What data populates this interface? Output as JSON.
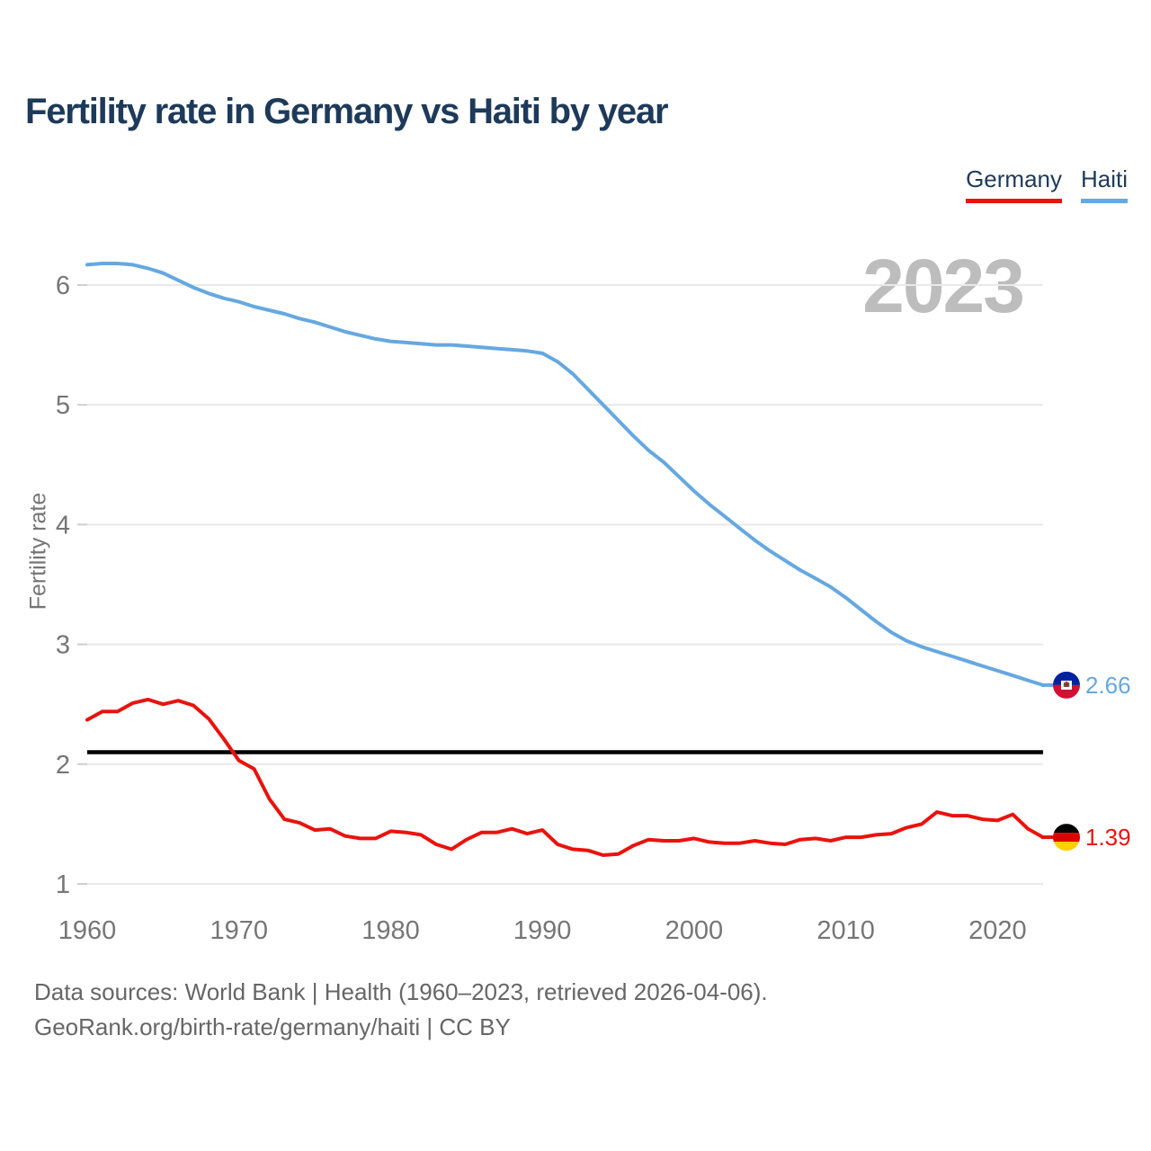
{
  "chart_data": {
    "type": "line",
    "title": "Fertility rate in Germany vs Haiti by year",
    "ylabel": "Fertility rate",
    "watermark": "2023",
    "xlim": [
      1960,
      2023
    ],
    "ylim": [
      1,
      6.5
    ],
    "x_ticks": [
      1960,
      1970,
      1980,
      1990,
      2000,
      2010,
      2020
    ],
    "y_ticks": [
      1,
      2,
      3,
      4,
      5,
      6
    ],
    "grid": "horizontal",
    "legend_position": "top-right",
    "reference_line": {
      "value": 2.1,
      "color": "#000000"
    },
    "x": [
      1960,
      1961,
      1962,
      1963,
      1964,
      1965,
      1966,
      1967,
      1968,
      1969,
      1970,
      1971,
      1972,
      1973,
      1974,
      1975,
      1976,
      1977,
      1978,
      1979,
      1980,
      1981,
      1982,
      1983,
      1984,
      1985,
      1986,
      1987,
      1988,
      1989,
      1990,
      1991,
      1992,
      1993,
      1994,
      1995,
      1996,
      1997,
      1998,
      1999,
      2000,
      2001,
      2002,
      2003,
      2004,
      2005,
      2006,
      2007,
      2008,
      2009,
      2010,
      2011,
      2012,
      2013,
      2014,
      2015,
      2016,
      2017,
      2018,
      2019,
      2020,
      2021,
      2022,
      2023
    ],
    "series": [
      {
        "name": "Germany",
        "color": "#e9130c",
        "end_label": "1.39",
        "flag_icon": "germany-flag-icon",
        "flag_colors": [
          "#000000",
          "#dd0000",
          "#ffce00"
        ],
        "values": [
          2.37,
          2.44,
          2.44,
          2.51,
          2.54,
          2.5,
          2.53,
          2.49,
          2.38,
          2.21,
          2.03,
          1.96,
          1.71,
          1.54,
          1.51,
          1.45,
          1.46,
          1.4,
          1.38,
          1.38,
          1.44,
          1.43,
          1.41,
          1.33,
          1.29,
          1.37,
          1.43,
          1.43,
          1.46,
          1.42,
          1.45,
          1.33,
          1.29,
          1.28,
          1.24,
          1.25,
          1.32,
          1.37,
          1.36,
          1.36,
          1.38,
          1.35,
          1.34,
          1.34,
          1.36,
          1.34,
          1.33,
          1.37,
          1.38,
          1.36,
          1.39,
          1.39,
          1.41,
          1.42,
          1.47,
          1.5,
          1.6,
          1.57,
          1.57,
          1.54,
          1.53,
          1.58,
          1.46,
          1.39
        ]
      },
      {
        "name": "Haiti",
        "color": "#66a8e0",
        "end_label": "2.66",
        "flag_icon": "haiti-flag-icon",
        "flag_colors": [
          "#00209f",
          "#d21034",
          "#ffffff"
        ],
        "values": [
          6.17,
          6.18,
          6.18,
          6.17,
          6.14,
          6.1,
          6.04,
          5.98,
          5.93,
          5.89,
          5.86,
          5.82,
          5.79,
          5.76,
          5.72,
          5.69,
          5.65,
          5.61,
          5.58,
          5.55,
          5.53,
          5.52,
          5.51,
          5.5,
          5.5,
          5.49,
          5.48,
          5.47,
          5.46,
          5.45,
          5.43,
          5.36,
          5.26,
          5.13,
          5.0,
          4.87,
          4.74,
          4.62,
          4.52,
          4.4,
          4.28,
          4.17,
          4.07,
          3.97,
          3.87,
          3.78,
          3.7,
          3.62,
          3.55,
          3.48,
          3.39,
          3.29,
          3.19,
          3.1,
          3.03,
          2.98,
          2.94,
          2.9,
          2.86,
          2.82,
          2.78,
          2.74,
          2.7,
          2.66
        ]
      }
    ]
  },
  "footer": {
    "line1": "Data sources: World Bank | Health (1960–2023, retrieved 2026-04-06).",
    "line2": "GeoRank.org/birth-rate/germany/haiti | CC BY"
  }
}
